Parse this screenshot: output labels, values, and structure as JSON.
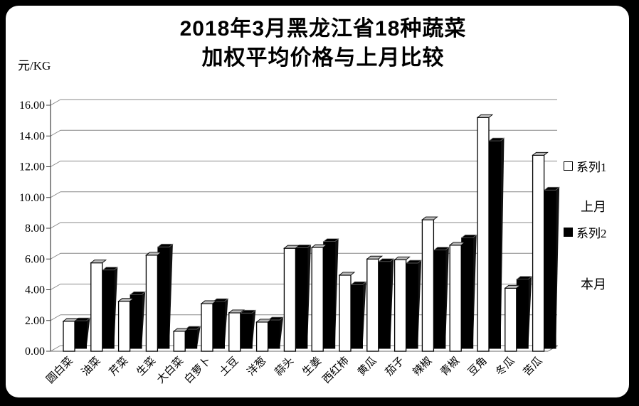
{
  "page": {
    "background_color": "#000000",
    "card_color": "#ffffff"
  },
  "chart_data": {
    "type": "bar",
    "title_lines": [
      "2018年3月黑龙江省18种蔬菜",
      "加权平均价格与上月比较"
    ],
    "y_unit_label": "元/KG",
    "ylim": [
      0,
      16
    ],
    "ytick_step": 2,
    "ytick_labels": [
      "0.00",
      "2.00",
      "4.00",
      "6.00",
      "8.00",
      "10.00",
      "12.00",
      "14.00",
      "16.00"
    ],
    "grid": true,
    "legend_position": "right",
    "style": "3d-column",
    "categories": [
      "圆白菜",
      "油菜",
      "芹菜",
      "生菜",
      "大白菜",
      "白萝卜",
      "土豆",
      "洋葱",
      "蒜头",
      "生姜",
      "西红柿",
      "黄瓜",
      "茄子",
      "辣椒",
      "青椒",
      "豆角",
      "冬瓜",
      "苦瓜"
    ],
    "series": [
      {
        "name": "系列1",
        "caption": "上月",
        "color": "#ffffff",
        "values": [
          1.95,
          5.75,
          3.25,
          6.25,
          1.3,
          3.1,
          2.5,
          1.9,
          6.7,
          6.75,
          4.95,
          6.0,
          5.95,
          8.55,
          6.9,
          15.2,
          4.1,
          12.75
        ]
      },
      {
        "name": "系列2",
        "caption": "本月",
        "color": "#000000",
        "values": [
          1.8,
          5.1,
          3.5,
          6.6,
          1.25,
          3.05,
          2.3,
          1.85,
          6.55,
          6.95,
          4.15,
          5.65,
          5.55,
          6.4,
          7.2,
          13.5,
          4.5,
          10.3
        ]
      }
    ],
    "colors": {
      "gridline": "#888888",
      "axis": "#404040",
      "bar1_top_face": "#b9b9b9",
      "bar_outline": "#000000"
    }
  }
}
